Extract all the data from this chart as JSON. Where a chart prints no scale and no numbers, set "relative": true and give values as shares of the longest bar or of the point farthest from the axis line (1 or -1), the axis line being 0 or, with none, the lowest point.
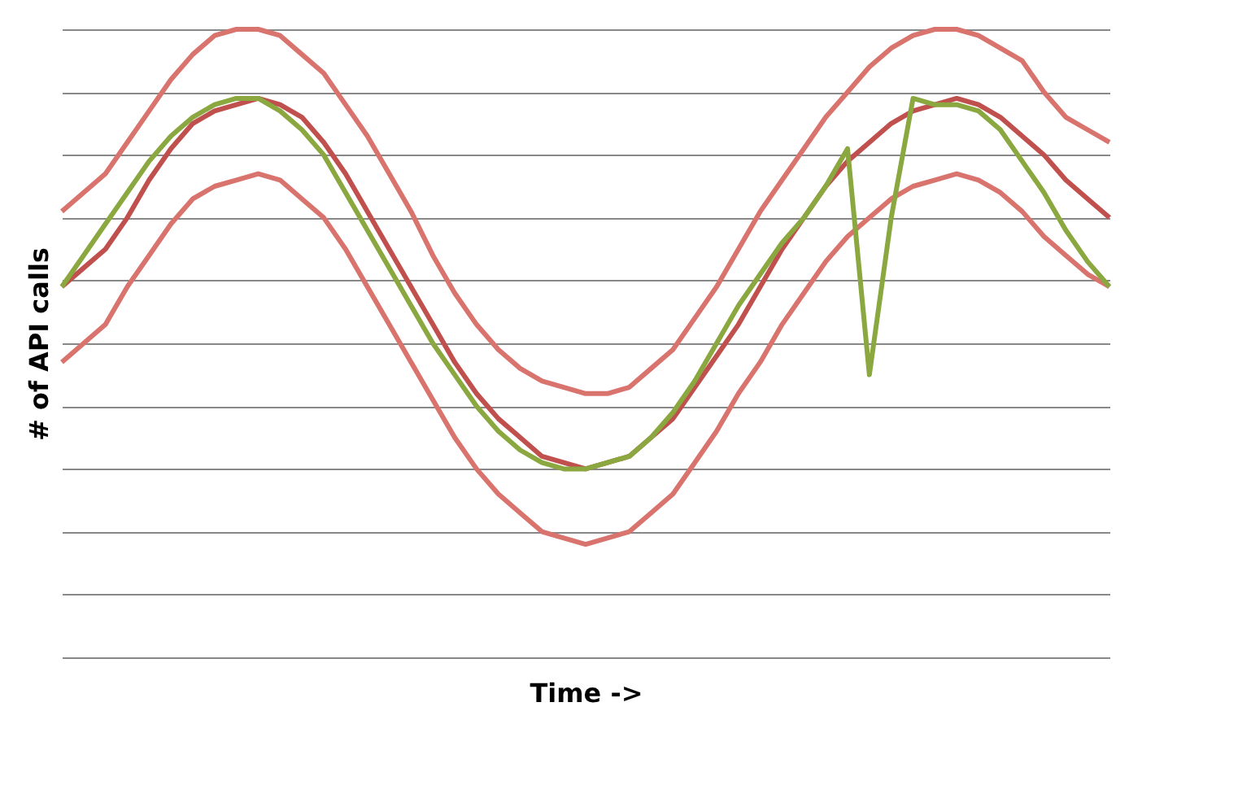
{
  "chart_data": {
    "type": "line",
    "relative": true,
    "xlabel": "Time ->",
    "ylabel": "# of API calls",
    "grid": "y",
    "legend": false,
    "marker": "none",
    "line_style": "solid",
    "categories": [
      null,
      null,
      null,
      null,
      null,
      null,
      null,
      null,
      null,
      null,
      null,
      null,
      null,
      null,
      null,
      null,
      null,
      null,
      null,
      null,
      null,
      null,
      null,
      null,
      null,
      null,
      null,
      null,
      null,
      null,
      null,
      null,
      null,
      null,
      null,
      null,
      null,
      null,
      null,
      null,
      null,
      null,
      null,
      null,
      null,
      null,
      null,
      null,
      null
    ],
    "series": [
      {
        "color": "#d9736d",
        "values": [
          0.71,
          0.74,
          0.77,
          0.82,
          0.87,
          0.92,
          0.96,
          0.99,
          1.0,
          1.0,
          0.99,
          0.96,
          0.93,
          0.88,
          0.83,
          0.77,
          0.71,
          0.64,
          0.58,
          0.53,
          0.49,
          0.46,
          0.44,
          0.43,
          0.42,
          0.42,
          0.43,
          0.46,
          0.49,
          0.54,
          0.59,
          0.65,
          0.71,
          0.76,
          0.81,
          0.86,
          0.9,
          0.94,
          0.97,
          0.99,
          1.0,
          1.0,
          0.99,
          0.97,
          0.95,
          0.9,
          0.86,
          0.84,
          0.82
        ]
      },
      {
        "color": "#d9736d",
        "values": [
          0.47,
          0.5,
          0.53,
          0.59,
          0.64,
          0.69,
          0.73,
          0.75,
          0.76,
          0.77,
          0.76,
          0.73,
          0.7,
          0.65,
          0.59,
          0.53,
          0.47,
          0.41,
          0.35,
          0.3,
          0.26,
          0.23,
          0.2,
          0.19,
          0.18,
          0.19,
          0.2,
          0.23,
          0.26,
          0.31,
          0.36,
          0.42,
          0.47,
          0.53,
          0.58,
          0.63,
          0.67,
          0.7,
          0.73,
          0.75,
          0.76,
          0.77,
          0.76,
          0.74,
          0.71,
          0.67,
          0.64,
          0.61,
          0.59
        ]
      },
      {
        "color": "#c0504d",
        "values": [
          0.59,
          0.62,
          0.65,
          0.7,
          0.76,
          0.81,
          0.85,
          0.87,
          0.88,
          0.89,
          0.88,
          0.86,
          0.82,
          0.77,
          0.71,
          0.65,
          0.59,
          0.53,
          0.47,
          0.42,
          0.38,
          0.35,
          0.32,
          0.31,
          0.3,
          0.31,
          0.32,
          0.35,
          0.38,
          0.43,
          0.48,
          0.53,
          0.59,
          0.65,
          0.7,
          0.75,
          0.79,
          0.82,
          0.85,
          0.87,
          0.88,
          0.89,
          0.88,
          0.86,
          0.83,
          0.8,
          0.76,
          0.73,
          0.7
        ]
      },
      {
        "color": "#8aa83f",
        "values": [
          0.59,
          0.64,
          0.69,
          0.74,
          0.79,
          0.83,
          0.86,
          0.88,
          0.89,
          0.89,
          0.87,
          0.84,
          0.8,
          0.74,
          0.68,
          0.62,
          0.56,
          0.5,
          0.45,
          0.4,
          0.36,
          0.33,
          0.31,
          0.3,
          0.3,
          0.31,
          0.32,
          0.35,
          0.39,
          0.44,
          0.5,
          0.56,
          0.61,
          0.66,
          0.7,
          0.75,
          0.81,
          0.45,
          0.7,
          0.89,
          0.88,
          0.88,
          0.87,
          0.84,
          0.79,
          0.74,
          0.68,
          0.63,
          0.59
        ]
      }
    ]
  }
}
